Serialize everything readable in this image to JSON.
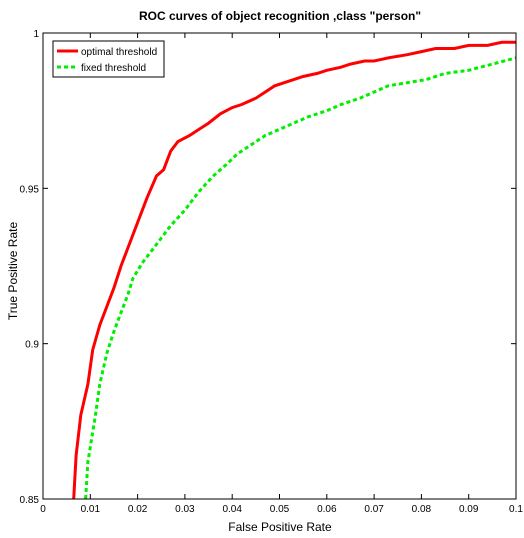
{
  "chart_data": {
    "type": "line",
    "title": "ROC curves of object recognition ,class \"person\"",
    "xlabel": "False Positive Rate",
    "ylabel": "True Positive Rate",
    "xlim": [
      0,
      0.1
    ],
    "ylim": [
      0.85,
      1
    ],
    "x_ticks": [
      0,
      0.01,
      0.02,
      0.03,
      0.04,
      0.05,
      0.06,
      0.07,
      0.08,
      0.09,
      0.1
    ],
    "x_tick_labels": [
      "0",
      "0.01",
      "0.02",
      "0.03",
      "0.04",
      "0.05",
      "0.06",
      "0.07",
      "0.08",
      "0.09",
      "0.1"
    ],
    "y_ticks": [
      0.85,
      0.9,
      0.95,
      1
    ],
    "y_tick_labels": [
      "0.85",
      "0.9",
      "0.95",
      "1"
    ],
    "grid": false,
    "legend_position": "top-left",
    "series": [
      {
        "name": "optimal threshold",
        "color": "#ff0000",
        "style": "solid",
        "x": [
          0.0065,
          0.007,
          0.008,
          0.0095,
          0.0105,
          0.012,
          0.0135,
          0.015,
          0.0165,
          0.018,
          0.02,
          0.022,
          0.024,
          0.0255,
          0.027,
          0.0285,
          0.031,
          0.033,
          0.035,
          0.0375,
          0.04,
          0.042,
          0.045,
          0.047,
          0.049,
          0.051,
          0.053,
          0.055,
          0.058,
          0.06,
          0.063,
          0.065,
          0.068,
          0.07,
          0.073,
          0.077,
          0.08,
          0.083,
          0.087,
          0.09,
          0.094,
          0.097,
          0.1
        ],
        "y": [
          0.85,
          0.864,
          0.877,
          0.887,
          0.898,
          0.906,
          0.912,
          0.918,
          0.925,
          0.931,
          0.939,
          0.947,
          0.954,
          0.956,
          0.962,
          0.965,
          0.967,
          0.969,
          0.971,
          0.974,
          0.976,
          0.977,
          0.979,
          0.981,
          0.983,
          0.984,
          0.985,
          0.986,
          0.987,
          0.988,
          0.989,
          0.99,
          0.991,
          0.991,
          0.992,
          0.993,
          0.994,
          0.995,
          0.995,
          0.996,
          0.996,
          0.997,
          0.997
        ]
      },
      {
        "name": "fixed threshold",
        "color": "#00ee00",
        "style": "dotted",
        "x": [
          0.009,
          0.0095,
          0.011,
          0.012,
          0.0135,
          0.015,
          0.0165,
          0.018,
          0.019,
          0.021,
          0.023,
          0.025,
          0.027,
          0.03,
          0.033,
          0.036,
          0.039,
          0.041,
          0.044,
          0.047,
          0.05,
          0.053,
          0.056,
          0.06,
          0.063,
          0.067,
          0.07,
          0.073,
          0.077,
          0.081,
          0.085,
          0.09,
          0.095,
          0.1
        ],
        "y": [
          0.85,
          0.862,
          0.876,
          0.887,
          0.897,
          0.904,
          0.91,
          0.916,
          0.921,
          0.926,
          0.93,
          0.934,
          0.938,
          0.943,
          0.949,
          0.954,
          0.958,
          0.961,
          0.964,
          0.967,
          0.969,
          0.971,
          0.973,
          0.975,
          0.977,
          0.979,
          0.981,
          0.983,
          0.984,
          0.985,
          0.987,
          0.988,
          0.99,
          0.992
        ]
      }
    ]
  }
}
